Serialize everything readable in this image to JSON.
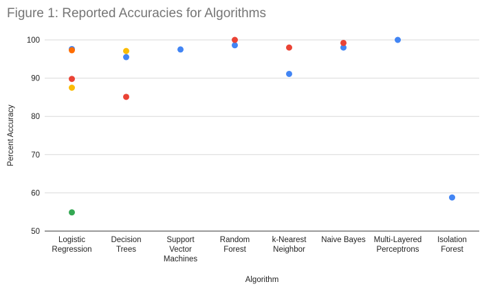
{
  "chart_data": {
    "type": "scatter",
    "title": "Figure 1: Reported Accuracies for Algorithms",
    "xlabel": "Algorithm",
    "ylabel": "Percent Accuracy",
    "ylim": [
      50,
      100
    ],
    "yticks": [
      50,
      60,
      70,
      80,
      90,
      100
    ],
    "grid": true,
    "legend": "none",
    "categories": [
      {
        "label_lines": [
          "Logistic",
          "Regression"
        ]
      },
      {
        "label_lines": [
          "Decision",
          "Trees"
        ]
      },
      {
        "label_lines": [
          "Support",
          "Vector",
          "Machines"
        ]
      },
      {
        "label_lines": [
          "Random",
          "Forest"
        ]
      },
      {
        "label_lines": [
          "k-Nearest",
          "Neighbor"
        ]
      },
      {
        "label_lines": [
          "Naive Bayes"
        ]
      },
      {
        "label_lines": [
          "Multi-Layered",
          "Perceptrons"
        ]
      },
      {
        "label_lines": [
          "Isolation",
          "Forest"
        ]
      }
    ],
    "series": [
      {
        "color": "#4285f4",
        "values": [
          97.6,
          95.5,
          97.5,
          98.6,
          91.1,
          98.0,
          100.0,
          58.8
        ]
      },
      {
        "color": "#ea4335",
        "values": [
          89.8,
          85.1,
          null,
          100.0,
          98.0,
          99.2,
          null,
          null
        ]
      },
      {
        "color": "#fbbc04",
        "values": [
          87.5,
          97.1,
          null,
          null,
          null,
          null,
          null,
          null
        ]
      },
      {
        "color": "#34a853",
        "values": [
          54.9,
          null,
          null,
          null,
          null,
          null,
          null,
          null
        ]
      },
      {
        "color": "#ff6d01",
        "values": [
          97.3,
          null,
          null,
          null,
          null,
          null,
          null,
          null
        ]
      }
    ]
  }
}
